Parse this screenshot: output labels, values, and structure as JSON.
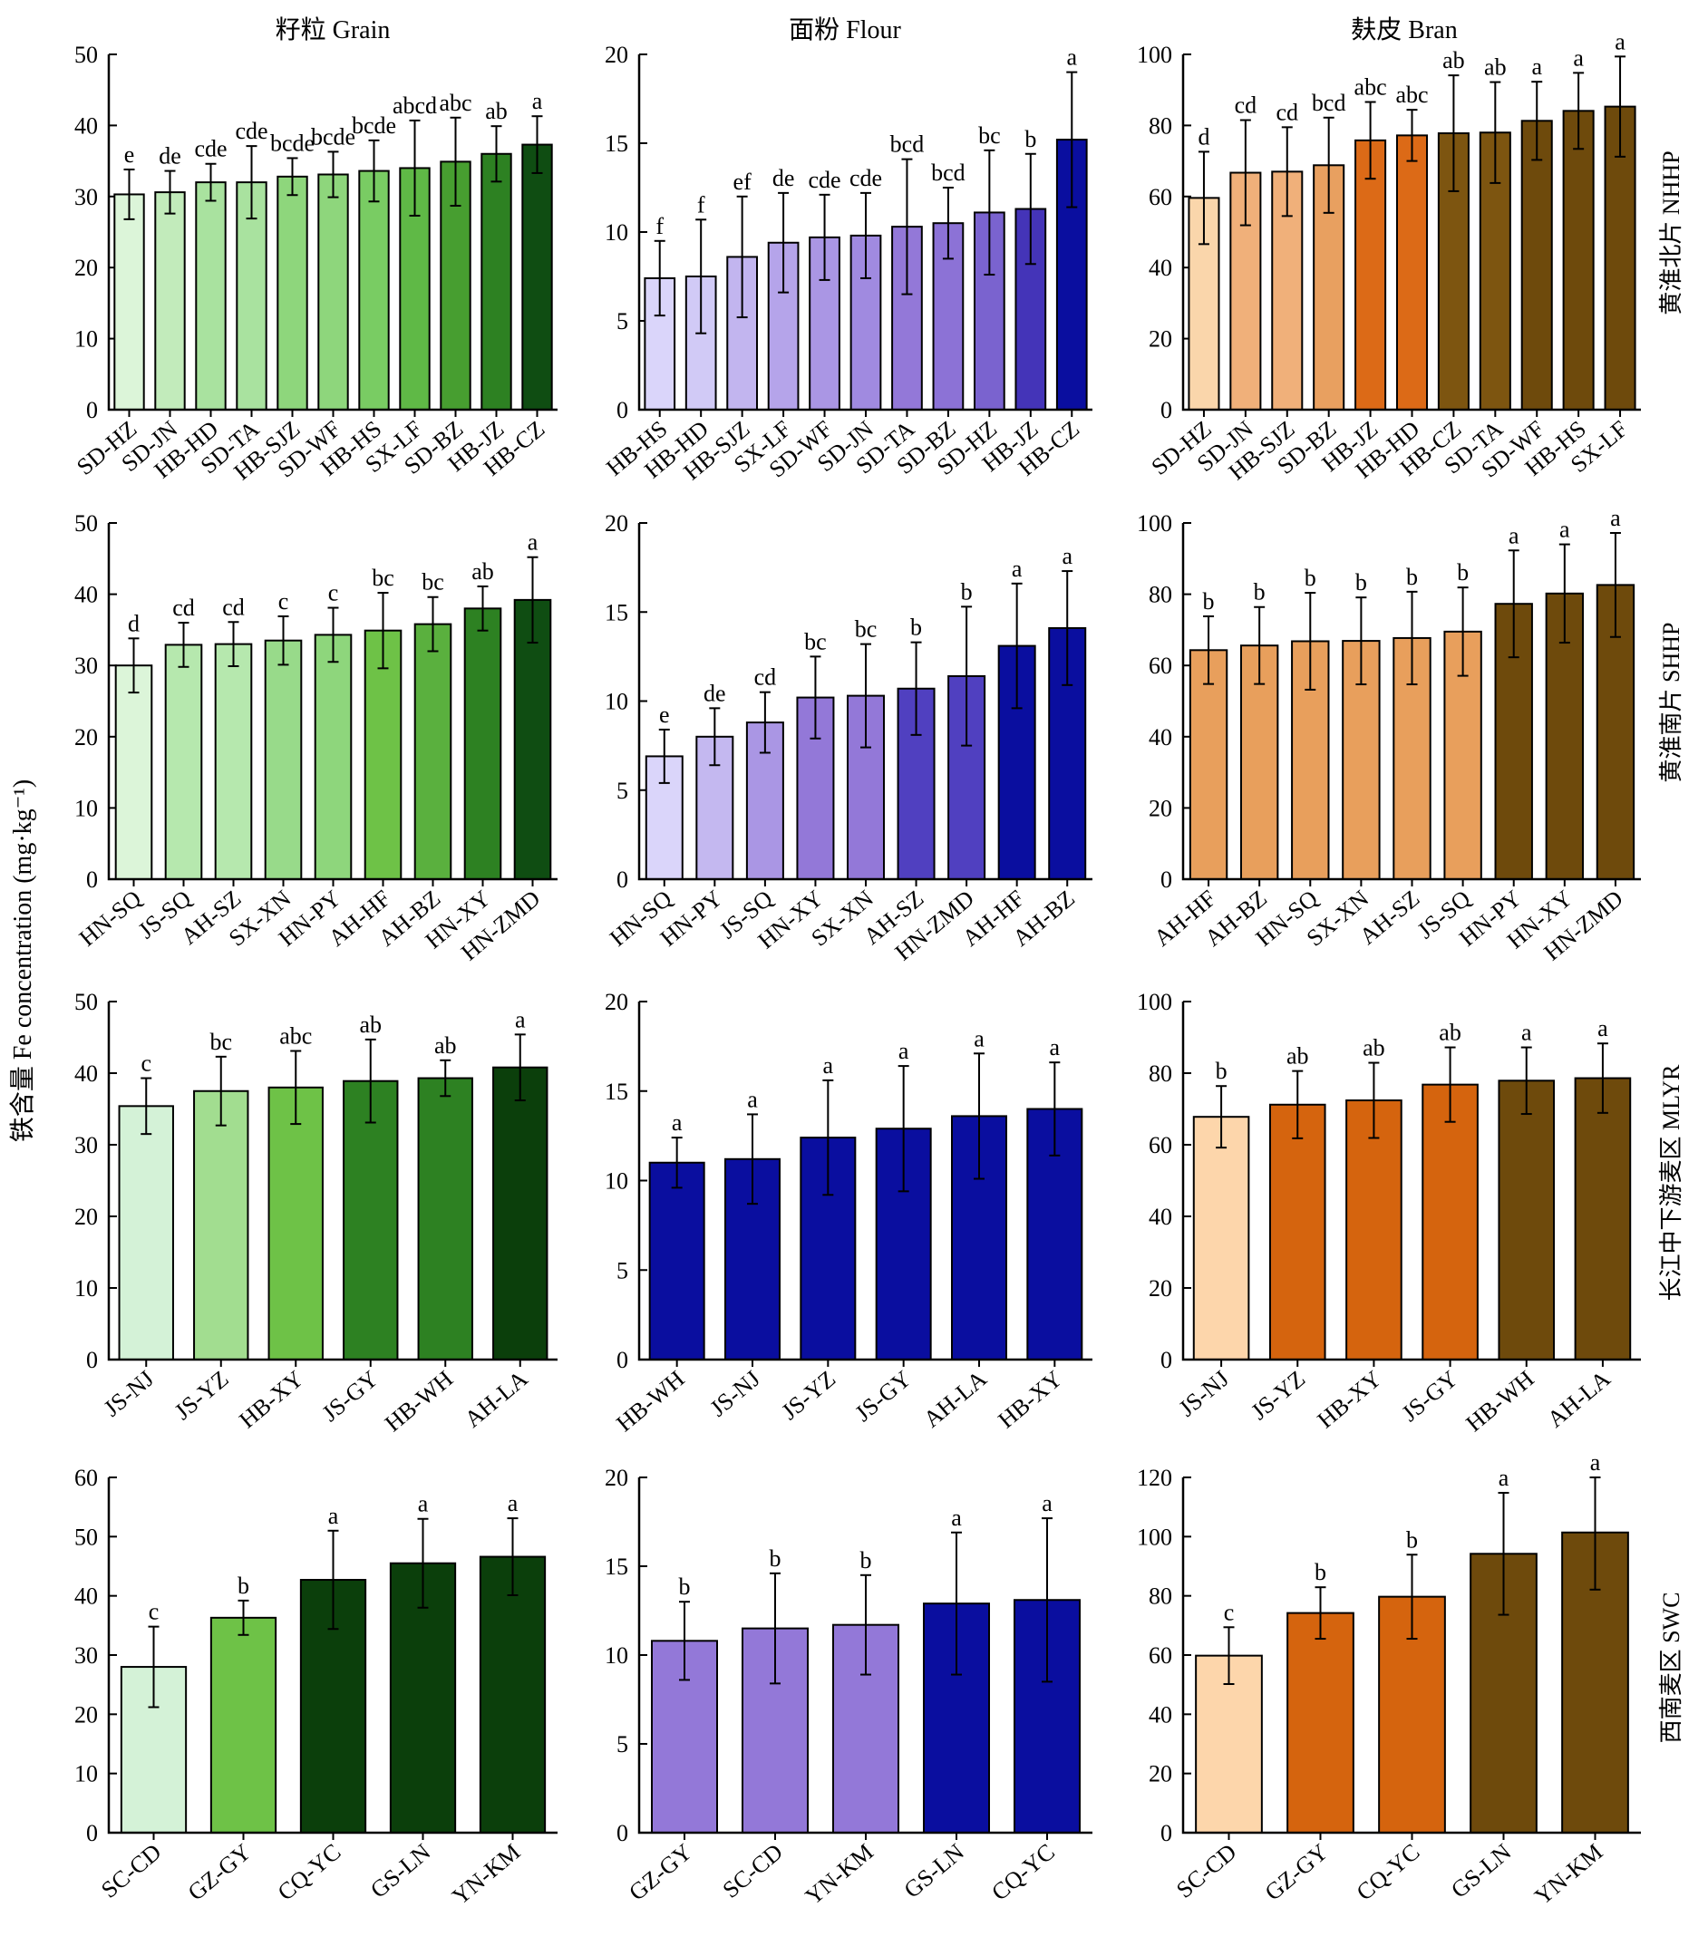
{
  "figure": {
    "ylabel": "铁含量 Fe concentration (mg·kg⁻¹)",
    "column_titles": [
      "籽粒 Grain",
      "面粉 Flour",
      "麸皮 Bran"
    ],
    "row_labels": [
      "黄淮北片 NHHP",
      "黄淮南片 SHHP",
      "长江中下游麦区 MLYR",
      "西南麦区 SWC"
    ]
  },
  "chart_data": [
    {
      "type": "bar",
      "row": 0,
      "col": 0,
      "categories": [
        "SD-HZ",
        "SD-JN",
        "HB-HD",
        "SD-TA",
        "HB-SJZ",
        "SD-WF",
        "HB-HS",
        "SX-LF",
        "SD-BZ",
        "HB-JZ",
        "HB-CZ"
      ],
      "values": [
        30.3,
        30.6,
        32.0,
        32.0,
        32.8,
        33.1,
        33.6,
        34.0,
        34.9,
        36.0,
        37.3
      ],
      "errors": [
        3.5,
        3.0,
        2.6,
        5.1,
        2.6,
        3.2,
        4.3,
        6.7,
        6.2,
        3.9,
        4.0
      ],
      "labels": [
        "e",
        "de",
        "cde",
        "cde",
        "bcde",
        "bcde",
        "bcde",
        "abcd",
        "abc",
        "ab",
        "a"
      ],
      "colors": [
        "#dcf5d9",
        "#c2ebbb",
        "#a9e29f",
        "#a9e29f",
        "#8ed67c",
        "#8ed67c",
        "#79cc63",
        "#5fb946",
        "#479e30",
        "#2d8122",
        "#0f4d12"
      ],
      "ylim": [
        0,
        50
      ],
      "yticks": [
        0,
        10,
        20,
        30,
        40,
        50
      ]
    },
    {
      "type": "bar",
      "row": 0,
      "col": 1,
      "categories": [
        "HB-HS",
        "HB-HD",
        "HB-SJZ",
        "SX-LF",
        "SD-WF",
        "SD-JN",
        "SD-TA",
        "SD-BZ",
        "SD-HZ",
        "HB-JZ",
        "HB-CZ"
      ],
      "values": [
        7.4,
        7.5,
        8.6,
        9.4,
        9.7,
        9.8,
        10.3,
        10.5,
        11.1,
        11.3,
        15.2
      ],
      "errors": [
        2.1,
        3.2,
        3.4,
        2.8,
        2.4,
        2.4,
        3.8,
        2.0,
        3.5,
        3.1,
        3.8
      ],
      "labels": [
        "f",
        "f",
        "ef",
        "de",
        "cde",
        "cde",
        "bcd",
        "bcd",
        "bc",
        "b",
        "a"
      ],
      "colors": [
        "#dad5fa",
        "#d1caf6",
        "#c2b5ef",
        "#b5a4ea",
        "#aa96e4",
        "#a08ae0",
        "#9378d8",
        "#8c72d6",
        "#7a63cf",
        "#4434b8",
        "#0a0e9f"
      ],
      "ylim": [
        0,
        20
      ],
      "yticks": [
        0,
        5,
        10,
        15,
        20
      ]
    },
    {
      "type": "bar",
      "row": 0,
      "col": 2,
      "categories": [
        "SD-HZ",
        "SD-JN",
        "HB-SJZ",
        "SD-BZ",
        "HB-JZ",
        "HB-HD",
        "HB-CZ",
        "SD-TA",
        "SD-WF",
        "HB-HS",
        "SX-LF"
      ],
      "values": [
        59.6,
        66.7,
        67.0,
        68.8,
        75.8,
        77.2,
        77.8,
        78.0,
        81.3,
        84.1,
        85.3
      ],
      "errors": [
        13.0,
        14.8,
        12.5,
        13.4,
        10.8,
        7.2,
        16.3,
        14.2,
        11.0,
        10.7,
        14.1
      ],
      "labels": [
        "d",
        "cd",
        "cd",
        "bcd",
        "abc",
        "abc",
        "ab",
        "ab",
        "a",
        "a",
        "a"
      ],
      "colors": [
        "#fad6ab",
        "#f0b07a",
        "#f0b07a",
        "#e8a060",
        "#dc6a17",
        "#dc6a17",
        "#7d5510",
        "#7d5510",
        "#6e4a0c",
        "#6e4a0c",
        "#6e4a0c"
      ],
      "ylim": [
        0,
        100
      ],
      "yticks": [
        0,
        20,
        40,
        60,
        80,
        100
      ]
    },
    {
      "type": "bar",
      "row": 1,
      "col": 0,
      "categories": [
        "HN-SQ",
        "JS-SQ",
        "AH-SZ",
        "SX-XN",
        "HN-PY",
        "AH-HF",
        "AH-BZ",
        "HN-XY",
        "HN-ZMD"
      ],
      "values": [
        30.0,
        32.9,
        33.0,
        33.5,
        34.3,
        34.9,
        35.8,
        38.0,
        39.2
      ],
      "errors": [
        3.8,
        3.1,
        3.1,
        3.4,
        3.8,
        5.3,
        3.8,
        3.1,
        6.0
      ],
      "labels": [
        "d",
        "cd",
        "cd",
        "c",
        "c",
        "bc",
        "bc",
        "ab",
        "a"
      ],
      "colors": [
        "#dcf5d9",
        "#b6e8ae",
        "#b6e8ae",
        "#98da8a",
        "#8ed67c",
        "#6ec247",
        "#5ab03e",
        "#2d8122",
        "#0f4d12"
      ],
      "ylim": [
        0,
        50
      ],
      "yticks": [
        0,
        10,
        20,
        30,
        40,
        50
      ]
    },
    {
      "type": "bar",
      "row": 1,
      "col": 1,
      "categories": [
        "HN-SQ",
        "HN-PY",
        "JS-SQ",
        "HN-XY",
        "SX-XN",
        "AH-SZ",
        "HN-ZMD",
        "AH-HF",
        "AH-BZ"
      ],
      "values": [
        6.9,
        8.0,
        8.8,
        10.2,
        10.3,
        10.7,
        11.4,
        13.1,
        14.1
      ],
      "errors": [
        1.5,
        1.6,
        1.7,
        2.3,
        2.9,
        2.6,
        3.9,
        3.5,
        3.2
      ],
      "labels": [
        "e",
        "de",
        "cd",
        "bc",
        "bc",
        "b",
        "b",
        "a",
        "a"
      ],
      "colors": [
        "#dad5fa",
        "#c4b8f0",
        "#aa96e4",
        "#9378d8",
        "#9378d8",
        "#5040c0",
        "#5040c0",
        "#0a0e9f",
        "#0a0e9f"
      ],
      "ylim": [
        0,
        20
      ],
      "yticks": [
        0,
        5,
        10,
        15,
        20
      ]
    },
    {
      "type": "bar",
      "row": 1,
      "col": 2,
      "categories": [
        "AH-HF",
        "AH-BZ",
        "HN-SQ",
        "SX-XN",
        "AH-SZ",
        "JS-SQ",
        "HN-PY",
        "HN-XY",
        "HN-ZMD"
      ],
      "values": [
        64.3,
        65.6,
        66.8,
        66.9,
        67.7,
        69.5,
        77.3,
        80.2,
        82.6
      ],
      "errors": [
        9.5,
        10.8,
        13.6,
        12.2,
        13.0,
        12.4,
        15.0,
        13.8,
        14.6
      ],
      "labels": [
        "b",
        "b",
        "b",
        "b",
        "b",
        "b",
        "a",
        "a",
        "a"
      ],
      "colors": [
        "#e89f5c",
        "#e89f5c",
        "#e89f5c",
        "#e89f5c",
        "#e89f5c",
        "#e89f5c",
        "#6e4a0c",
        "#6e4a0c",
        "#6e4a0c"
      ],
      "ylim": [
        0,
        100
      ],
      "yticks": [
        0,
        20,
        40,
        60,
        80,
        100
      ]
    },
    {
      "type": "bar",
      "row": 2,
      "col": 0,
      "categories": [
        "JS-NJ",
        "JS-YZ",
        "HB-XY",
        "JS-GY",
        "HB-WH",
        "AH-LA"
      ],
      "values": [
        35.4,
        37.5,
        38.0,
        38.9,
        39.3,
        40.8
      ],
      "errors": [
        3.9,
        4.8,
        5.1,
        5.8,
        2.5,
        4.6
      ],
      "labels": [
        "c",
        "bc",
        "abc",
        "ab",
        "ab",
        "a"
      ],
      "colors": [
        "#d4f2d7",
        "#a2dd90",
        "#6ec247",
        "#2d8122",
        "#2d8122",
        "#0b3f0b"
      ],
      "ylim": [
        0,
        50
      ],
      "yticks": [
        0,
        10,
        20,
        30,
        40,
        50
      ]
    },
    {
      "type": "bar",
      "row": 2,
      "col": 1,
      "categories": [
        "HB-WH",
        "JS-NJ",
        "JS-YZ",
        "JS-GY",
        "AH-LA",
        "HB-XY"
      ],
      "values": [
        11.0,
        11.2,
        12.4,
        12.9,
        13.6,
        14.0
      ],
      "errors": [
        1.4,
        2.5,
        3.2,
        3.5,
        3.5,
        2.6
      ],
      "labels": [
        "a",
        "a",
        "a",
        "a",
        "a",
        "a"
      ],
      "colors": [
        "#0a0e9f",
        "#0a0e9f",
        "#0a0e9f",
        "#0a0e9f",
        "#0a0e9f",
        "#0a0e9f"
      ],
      "ylim": [
        0,
        20
      ],
      "yticks": [
        0,
        5,
        10,
        15,
        20
      ]
    },
    {
      "type": "bar",
      "row": 2,
      "col": 2,
      "categories": [
        "JS-NJ",
        "JS-YZ",
        "HB-XY",
        "JS-GY",
        "HB-WH",
        "AH-LA"
      ],
      "values": [
        67.8,
        71.2,
        72.4,
        76.8,
        77.9,
        78.6
      ],
      "errors": [
        8.6,
        9.4,
        10.5,
        10.4,
        9.3,
        9.7
      ],
      "labels": [
        "b",
        "ab",
        "ab",
        "ab",
        "a",
        "a"
      ],
      "colors": [
        "#fdd6ab",
        "#d5640e",
        "#d5640e",
        "#d5640e",
        "#6e4a0c",
        "#6e4a0c"
      ],
      "ylim": [
        0,
        100
      ],
      "yticks": [
        0,
        20,
        40,
        60,
        80,
        100
      ]
    },
    {
      "type": "bar",
      "row": 3,
      "col": 0,
      "categories": [
        "SC-CD",
        "GZ-GY",
        "CQ-YC",
        "GS-LN",
        "YN-KM"
      ],
      "values": [
        28.0,
        36.3,
        42.7,
        45.5,
        46.6
      ],
      "errors": [
        6.8,
        2.9,
        8.3,
        7.5,
        6.5
      ],
      "labels": [
        "c",
        "b",
        "a",
        "a",
        "a"
      ],
      "colors": [
        "#d4f2d7",
        "#6ec247",
        "#0b3f0b",
        "#0b3f0b",
        "#0b3f0b"
      ],
      "ylim": [
        0,
        60
      ],
      "yticks": [
        0,
        10,
        20,
        30,
        40,
        50,
        60
      ]
    },
    {
      "type": "bar",
      "row": 3,
      "col": 1,
      "categories": [
        "GZ-GY",
        "SC-CD",
        "YN-KM",
        "GS-LN",
        "CQ-YC"
      ],
      "values": [
        10.8,
        11.5,
        11.7,
        12.9,
        13.1
      ],
      "errors": [
        2.2,
        3.1,
        2.8,
        4.0,
        4.6
      ],
      "labels": [
        "b",
        "b",
        "b",
        "a",
        "a"
      ],
      "colors": [
        "#9378d8",
        "#9378d8",
        "#9378d8",
        "#0a0e9f",
        "#0a0e9f"
      ],
      "ylim": [
        0,
        20
      ],
      "yticks": [
        0,
        5,
        10,
        15,
        20
      ]
    },
    {
      "type": "bar",
      "row": 3,
      "col": 2,
      "categories": [
        "SC-CD",
        "GZ-GY",
        "CQ-YC",
        "GS-LN",
        "YN-KM"
      ],
      "values": [
        59.8,
        74.2,
        79.7,
        94.2,
        101.4
      ],
      "errors": [
        9.6,
        8.7,
        14.2,
        20.6,
        19.3
      ],
      "labels": [
        "c",
        "b",
        "b",
        "a",
        "a"
      ],
      "colors": [
        "#fdd6ab",
        "#d5640e",
        "#d5640e",
        "#6e4a0c",
        "#6e4a0c"
      ],
      "ylim": [
        0,
        120
      ],
      "yticks": [
        0,
        20,
        40,
        60,
        80,
        100,
        120
      ]
    }
  ]
}
